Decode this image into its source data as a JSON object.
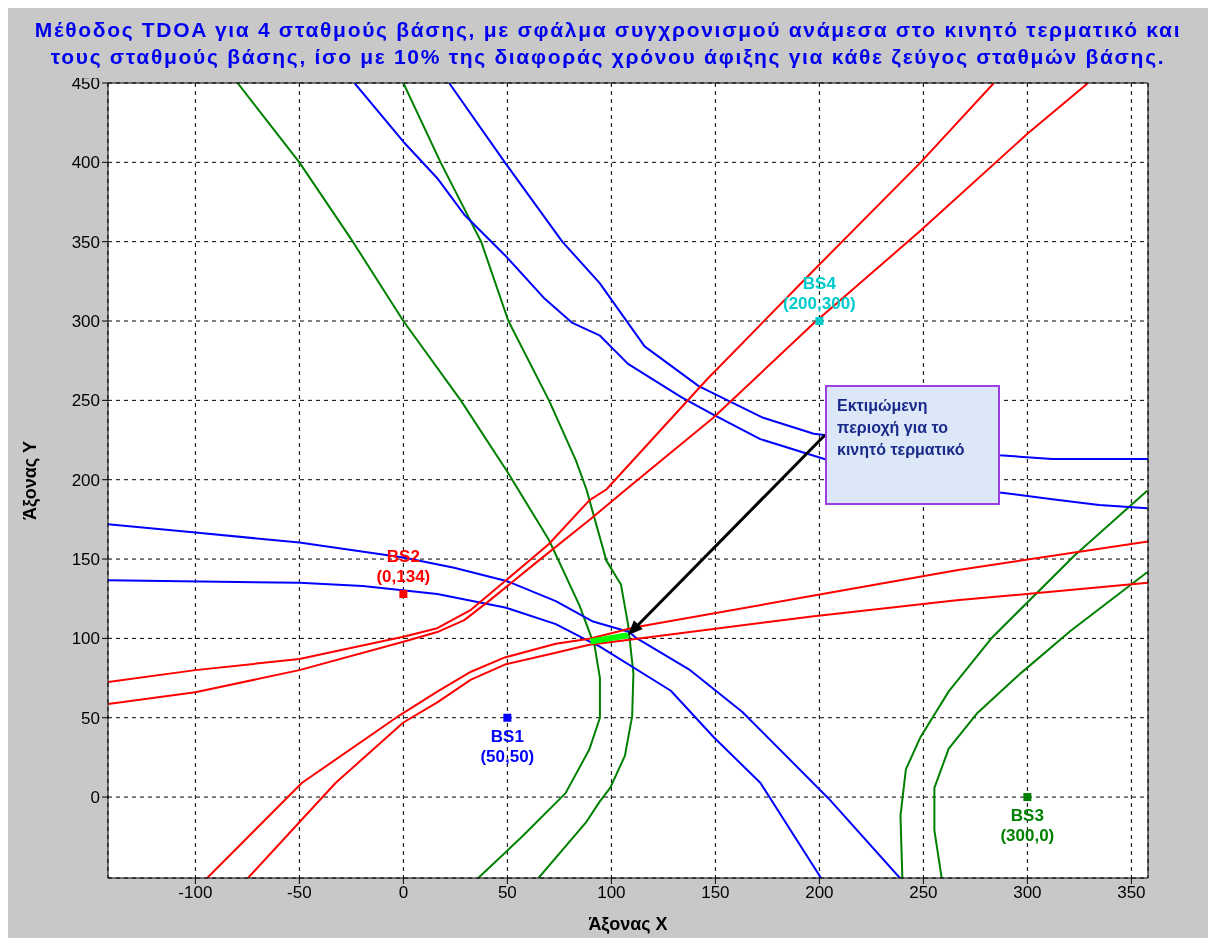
{
  "chart_data": {
    "type": "line",
    "title": "Μέθοδος TDOA για 4 σταθμούς βάσης, με σφάλμα συγχρονισμού ανάμεσα στο κινητό τερματικό και τους σταθμούς βάσης, ίσο με 10% της διαφοράς χρόνου άφιξης για κάθε ζεύγος σταθμών βάσης.",
    "xlabel": "Άξονας X",
    "ylabel": "Άξονας Y",
    "xlim": [
      -142,
      358
    ],
    "ylim": [
      -51,
      450
    ],
    "xticks": [
      -100,
      -50,
      0,
      50,
      100,
      150,
      200,
      250,
      300,
      350
    ],
    "yticks": [
      0,
      50,
      100,
      150,
      200,
      250,
      300,
      350,
      400,
      450
    ],
    "grid": true,
    "series": [
      {
        "type": "line",
        "color": "#008000",
        "x": [
          -79.7,
          -50,
          -24.3,
          0,
          27.6,
          50,
          70,
          84.6,
          92,
          94.5,
          94.5,
          89.4,
          78,
          57,
          36
        ],
        "values": [
          450,
          400,
          350,
          300,
          250,
          205,
          162,
          121,
          95,
          75,
          50,
          30,
          2.5,
          -25,
          -51
        ]
      },
      {
        "type": "line",
        "color": "#008000",
        "x": [
          0,
          17.9,
          37.4,
          50.5,
          70,
          83,
          88,
          97.6,
          104.6,
          108,
          110.6,
          110,
          106.5,
          99.5,
          94.3,
          87.8,
          65
        ],
        "values": [
          450,
          400,
          350,
          300,
          250,
          212,
          194,
          149,
          134,
          109,
          78,
          51,
          26,
          6,
          -3,
          -16,
          -51
        ]
      },
      {
        "type": "line",
        "color": "#008000",
        "x": [
          357.6,
          322.3,
          282.8,
          262.2,
          248.5,
          241.6,
          239,
          239.9
        ],
        "values": [
          193,
          151.8,
          100.2,
          66.6,
          37.5,
          17.5,
          -11.7,
          -51
        ]
      },
      {
        "type": "line",
        "color": "#008000",
        "x": [
          357.6,
          320.7,
          296.6,
          276,
          262.2,
          255.3,
          255.3,
          258.8
        ],
        "values": [
          141.7,
          104.7,
          77.8,
          53,
          30.5,
          5.8,
          -21,
          -51
        ]
      },
      {
        "type": "line",
        "color": "#0000ff",
        "x": [
          -23.5,
          0,
          16.3,
          29.3,
          48.8,
          68,
          81,
          94.3,
          108,
          133.6,
          149,
          171.6,
          202.4,
          286.8,
          312,
          334.5,
          357.6
        ],
        "values": [
          450,
          413,
          390,
          367,
          341.5,
          314,
          299,
          291,
          273,
          252,
          241,
          225.6,
          213,
          192,
          187.7,
          184,
          182
        ]
      },
      {
        "type": "line",
        "color": "#0000ff",
        "x": [
          22,
          48.8,
          76.4,
          94.3,
          116,
          142,
          173,
          197.3,
          286.6,
          312,
          358
        ],
        "values": [
          450,
          400,
          350,
          324,
          284,
          259,
          239,
          229,
          215.4,
          213,
          213
        ]
      },
      {
        "type": "line",
        "color": "#0000ff",
        "x": [
          -142,
          -100,
          -50,
          0,
          24.4,
          50,
          73.3,
          91.2,
          108.6,
          111.5,
          137.3,
          163,
          204.3,
          238.7
        ],
        "values": [
          172,
          166.7,
          160.4,
          151,
          144.5,
          136,
          123.5,
          110.6,
          104,
          100.7,
          80.5,
          53.6,
          -0.7,
          -51
        ]
      },
      {
        "type": "line",
        "color": "#0000ff",
        "x": [
          -142,
          -50,
          -19.5,
          16.3,
          48.9,
          73.3,
          89.6,
          94.3,
          128.6,
          149,
          171.6,
          200.8
        ],
        "values": [
          136.7,
          135,
          133,
          128,
          119.5,
          109,
          98,
          95,
          67,
          38,
          9,
          -51
        ]
      },
      {
        "type": "line",
        "color": "#ff0000",
        "x": [
          -142,
          -100,
          -50,
          0,
          16.3,
          32.5,
          48.8,
          70,
          89.4,
          97.7,
          145.8,
          197.3,
          248.7,
          283.9
        ],
        "values": [
          72.5,
          80,
          87,
          101,
          106.4,
          118,
          136,
          159.5,
          187,
          194,
          263,
          332,
          400,
          450
        ]
      },
      {
        "type": "line",
        "color": "#ff0000",
        "x": [
          -142,
          -100,
          -50,
          0,
          16.3,
          29.3,
          40.6,
          65,
          89.4,
          106.3,
          149,
          197.3,
          248.7,
          300,
          329.2
        ],
        "values": [
          58.7,
          66,
          80,
          97.9,
          104,
          111.5,
          123,
          149,
          174.6,
          193,
          239,
          298.6,
          357,
          418,
          450
        ]
      },
      {
        "type": "line",
        "color": "#ff0000",
        "x": [
          -94.3,
          -48.7,
          -1.6,
          16.3,
          32.5,
          48.8,
          73.3,
          89.4,
          111.5,
          197.4,
          266,
          358
        ],
        "values": [
          -51,
          9,
          51.7,
          66.5,
          79,
          88,
          96.6,
          99.8,
          107,
          127,
          143,
          161
        ]
      },
      {
        "type": "line",
        "color": "#ff0000",
        "x": [
          -74.7,
          -32.5,
          0,
          16.3,
          32.5,
          48.8,
          73.3,
          89.4,
          111.5,
          197.4,
          266,
          358
        ],
        "values": [
          -51,
          9,
          47,
          59.7,
          74,
          83.5,
          91,
          96,
          99.6,
          114,
          124,
          135
        ]
      },
      {
        "color": "#00ff00",
        "x": [
          90,
          99,
          108
        ],
        "values": [
          98,
          100,
          102
        ]
      },
      {
        "type": "scatter",
        "marker": "square",
        "x": [
          50,
          0,
          300,
          200
        ],
        "values": [
          50,
          128,
          0,
          300
        ],
        "colors": [
          "#0000ff",
          "#ff0000",
          "#008000",
          "#00cccc"
        ]
      }
    ],
    "annotations": [
      {
        "text": "BS1\n(50,50)",
        "x": 50,
        "y": 50
      },
      {
        "text": "BS2\n(0,134)",
        "x": 0,
        "y": 128
      },
      {
        "text": "BS3\n(300,0)",
        "x": 300,
        "y": 0
      },
      {
        "text": "BS4\n(200,300)",
        "x": 200,
        "y": 300
      },
      {
        "text": "Εκτιμώμενη περιοχή για το κινητό τερματικό",
        "x": 108,
        "y": 102
      }
    ]
  }
}
